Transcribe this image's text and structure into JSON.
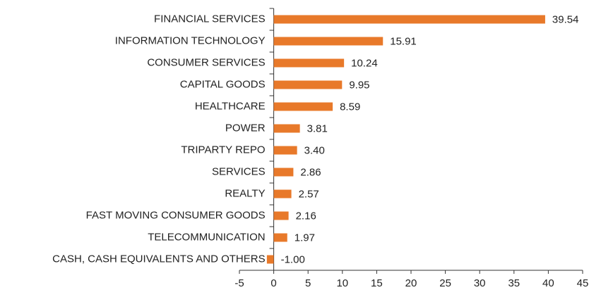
{
  "chart_data": {
    "type": "bar",
    "orientation": "horizontal",
    "categories": [
      "FINANCIAL SERVICES",
      "INFORMATION TECHNOLOGY",
      "CONSUMER SERVICES",
      "CAPITAL GOODS",
      "HEALTHCARE",
      "POWER",
      "TRIPARTY REPO",
      "SERVICES",
      "REALTY",
      "FAST MOVING CONSUMER GOODS",
      "TELECOMMUNICATION",
      "CASH, CASH EQUIVALENTS AND OTHERS"
    ],
    "values": [
      39.54,
      15.91,
      10.24,
      9.95,
      8.59,
      3.81,
      3.4,
      2.86,
      2.57,
      2.16,
      1.97,
      -1.0
    ],
    "value_labels": [
      "39.54",
      "15.91",
      "10.24",
      "9.95",
      "8.59",
      "3.81",
      "3.40",
      "2.86",
      "2.57",
      "2.16",
      "1.97",
      "-1.00"
    ],
    "color": "#e8792a",
    "xlim": [
      -5,
      45
    ],
    "xticks": [
      -5,
      0,
      5,
      10,
      15,
      20,
      25,
      30,
      35,
      40,
      45
    ],
    "grid": false
  }
}
